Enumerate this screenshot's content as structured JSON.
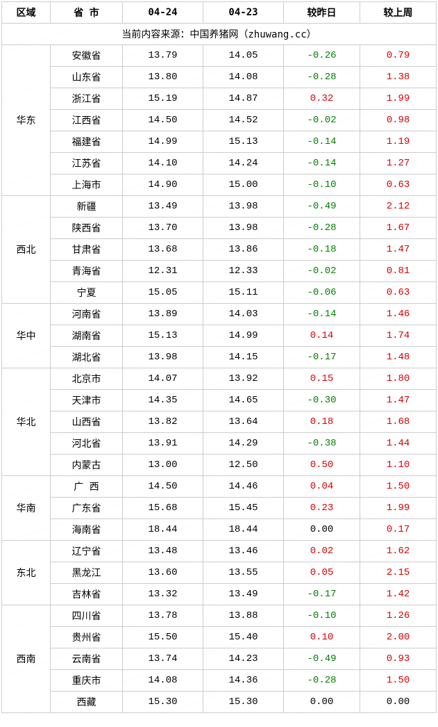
{
  "header": {
    "region": "区域",
    "province": "省 市",
    "date1": "04-24",
    "date2": "04-23",
    "vs_yesterday": "较昨日",
    "vs_lastweek": "较上周"
  },
  "source_line": "当前内容来源：中国养猪网（zhuwang.cc）",
  "colors": {
    "neg": "#008000",
    "pos": "#d80000",
    "zero": "#000000",
    "border": "#cccccc",
    "bg": "#ffffff"
  },
  "groups": [
    {
      "region": "华东",
      "rows": [
        {
          "prov": "安徽省",
          "d1": "13.79",
          "d2": "14.05",
          "yd": "-0.26",
          "wk": "0.79"
        },
        {
          "prov": "山东省",
          "d1": "13.80",
          "d2": "14.08",
          "yd": "-0.28",
          "wk": "1.38"
        },
        {
          "prov": "浙江省",
          "d1": "15.19",
          "d2": "14.87",
          "yd": "0.32",
          "wk": "1.99"
        },
        {
          "prov": "江西省",
          "d1": "14.50",
          "d2": "14.52",
          "yd": "-0.02",
          "wk": "0.98"
        },
        {
          "prov": "福建省",
          "d1": "14.99",
          "d2": "15.13",
          "yd": "-0.14",
          "wk": "1.19"
        },
        {
          "prov": "江苏省",
          "d1": "14.10",
          "d2": "14.24",
          "yd": "-0.14",
          "wk": "1.27"
        },
        {
          "prov": "上海市",
          "d1": "14.90",
          "d2": "15.00",
          "yd": "-0.10",
          "wk": "0.63"
        }
      ]
    },
    {
      "region": "西北",
      "rows": [
        {
          "prov": "新疆",
          "d1": "13.49",
          "d2": "13.98",
          "yd": "-0.49",
          "wk": "2.12"
        },
        {
          "prov": "陕西省",
          "d1": "13.70",
          "d2": "13.98",
          "yd": "-0.28",
          "wk": "1.67"
        },
        {
          "prov": "甘肃省",
          "d1": "13.68",
          "d2": "13.86",
          "yd": "-0.18",
          "wk": "1.47"
        },
        {
          "prov": "青海省",
          "d1": "12.31",
          "d2": "12.33",
          "yd": "-0.02",
          "wk": "0.81"
        },
        {
          "prov": "宁夏",
          "d1": "15.05",
          "d2": "15.11",
          "yd": "-0.06",
          "wk": "0.63"
        }
      ]
    },
    {
      "region": "华中",
      "rows": [
        {
          "prov": "河南省",
          "d1": "13.89",
          "d2": "14.03",
          "yd": "-0.14",
          "wk": "1.46"
        },
        {
          "prov": "湖南省",
          "d1": "15.13",
          "d2": "14.99",
          "yd": "0.14",
          "wk": "1.74"
        },
        {
          "prov": "湖北省",
          "d1": "13.98",
          "d2": "14.15",
          "yd": "-0.17",
          "wk": "1.48"
        }
      ]
    },
    {
      "region": "华北",
      "rows": [
        {
          "prov": "北京市",
          "d1": "14.07",
          "d2": "13.92",
          "yd": "0.15",
          "wk": "1.80"
        },
        {
          "prov": "天津市",
          "d1": "14.35",
          "d2": "14.65",
          "yd": "-0.30",
          "wk": "1.47"
        },
        {
          "prov": "山西省",
          "d1": "13.82",
          "d2": "13.64",
          "yd": "0.18",
          "wk": "1.68"
        },
        {
          "prov": "河北省",
          "d1": "13.91",
          "d2": "14.29",
          "yd": "-0.38",
          "wk": "1.44"
        },
        {
          "prov": "内蒙古",
          "d1": "13.00",
          "d2": "12.50",
          "yd": "0.50",
          "wk": "1.10"
        }
      ]
    },
    {
      "region": "华南",
      "rows": [
        {
          "prov": "广 西",
          "d1": "14.50",
          "d2": "14.46",
          "yd": "0.04",
          "wk": "1.50"
        },
        {
          "prov": "广东省",
          "d1": "15.68",
          "d2": "15.45",
          "yd": "0.23",
          "wk": "1.99"
        },
        {
          "prov": "海南省",
          "d1": "18.44",
          "d2": "18.44",
          "yd": "0.00",
          "wk": "0.17"
        }
      ]
    },
    {
      "region": "东北",
      "rows": [
        {
          "prov": "辽宁省",
          "d1": "13.48",
          "d2": "13.46",
          "yd": "0.02",
          "wk": "1.62"
        },
        {
          "prov": "黑龙江",
          "d1": "13.60",
          "d2": "13.55",
          "yd": "0.05",
          "wk": "2.15"
        },
        {
          "prov": "吉林省",
          "d1": "13.32",
          "d2": "13.49",
          "yd": "-0.17",
          "wk": "1.42"
        }
      ]
    },
    {
      "region": "西南",
      "rows": [
        {
          "prov": "四川省",
          "d1": "13.78",
          "d2": "13.88",
          "yd": "-0.10",
          "wk": "1.26"
        },
        {
          "prov": "贵州省",
          "d1": "15.50",
          "d2": "15.40",
          "yd": "0.10",
          "wk": "2.00"
        },
        {
          "prov": "云南省",
          "d1": "13.74",
          "d2": "14.23",
          "yd": "-0.49",
          "wk": "0.93"
        },
        {
          "prov": "重庆市",
          "d1": "14.08",
          "d2": "14.36",
          "yd": "-0.28",
          "wk": "1.50"
        },
        {
          "prov": "西藏",
          "d1": "15.30",
          "d2": "15.30",
          "yd": "0.00",
          "wk": "0.00"
        }
      ]
    }
  ]
}
